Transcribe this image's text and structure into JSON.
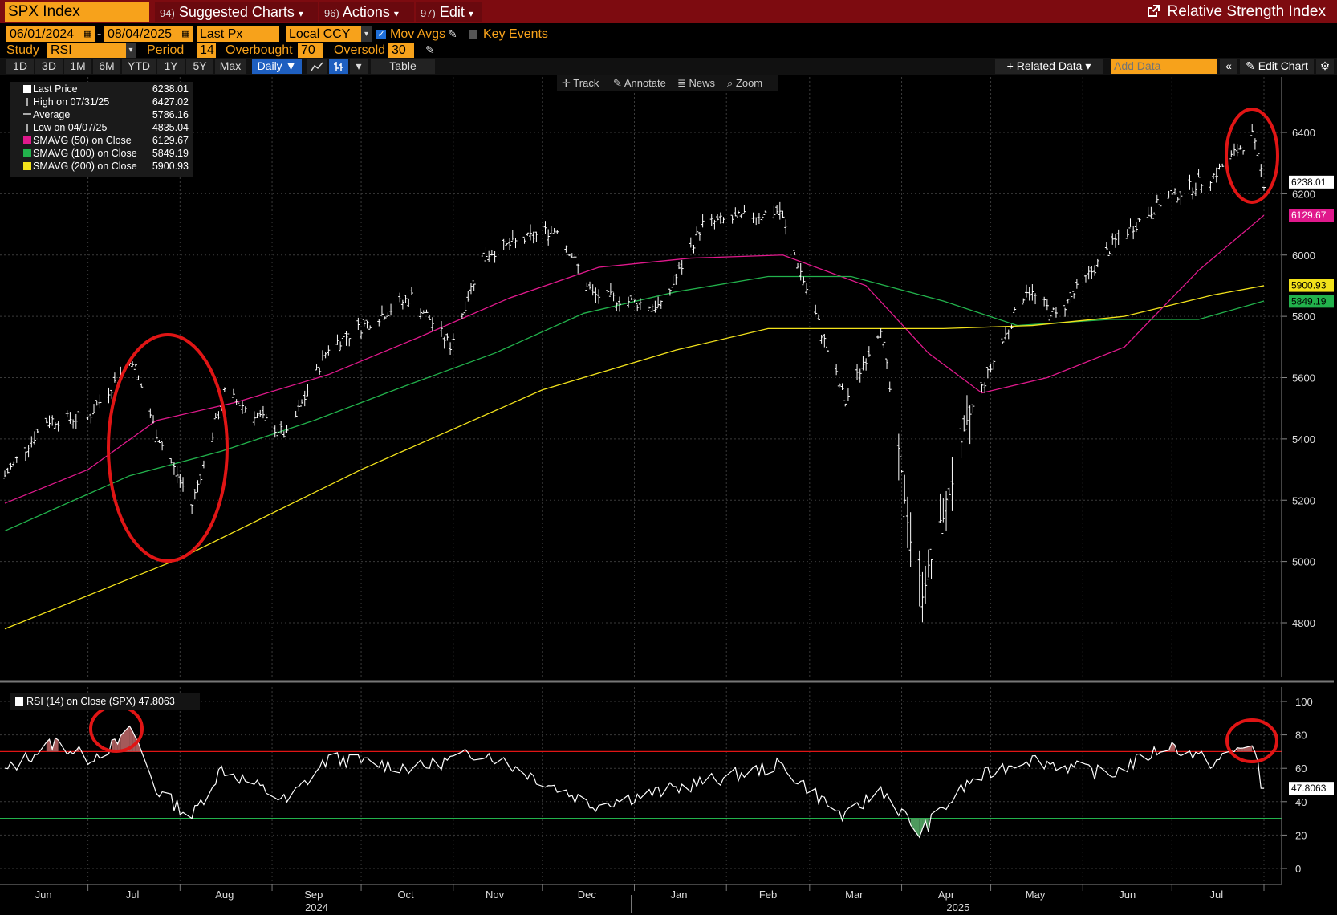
{
  "header": {
    "ticker": "SPX Index",
    "menus": [
      {
        "num": "94)",
        "label": "Suggested Charts",
        "caret": "▾"
      },
      {
        "num": "96)",
        "label": "Actions",
        "caret": "▾"
      },
      {
        "num": "97)",
        "label": "Edit",
        "caret": "▾"
      }
    ],
    "title": "Relative Strength Index"
  },
  "controls": {
    "start_date": "06/01/2024",
    "dash": "-",
    "end_date": "08/04/2025",
    "price_field": "Last Px",
    "currency": "Local CCY",
    "mov_avgs_label": "Mov Avgs",
    "key_events_label": "Key Events",
    "study_label": "Study",
    "study_value": "RSI",
    "period_label": "Period",
    "period_value": "14",
    "overbought_label": "Overbought",
    "overbought_value": "70",
    "oversold_label": "Oversold",
    "oversold_value": "30"
  },
  "toolbar": {
    "ranges": [
      "1D",
      "3D",
      "1M",
      "6M",
      "YTD",
      "1Y",
      "5Y",
      "Max"
    ],
    "frequency": "Daily ▼",
    "table_label": "Table",
    "related_data": "+ Related Data ▾",
    "add_data_placeholder": "Add Data",
    "collapse": "«",
    "edit_chart": "Edit Chart"
  },
  "chart_tools": [
    "Track",
    "Annotate",
    "News",
    "Zoom"
  ],
  "legend": [
    {
      "label": "Last Price",
      "value": "6238.01",
      "color": "#ffffff"
    },
    {
      "label": "High on 07/31/25",
      "value": "6427.02",
      "color": ""
    },
    {
      "label": "Average",
      "value": "5786.16",
      "color": ""
    },
    {
      "label": "Low on 04/07/25",
      "value": "4835.04",
      "color": ""
    },
    {
      "label": "SMAVG (50)  on Close",
      "value": "6129.67",
      "color": "#e0198c"
    },
    {
      "label": "SMAVG (100)  on Close",
      "value": "5849.19",
      "color": "#22b24c"
    },
    {
      "label": "SMAVG (200)  on Close",
      "value": "5900.93",
      "color": "#f2e21b"
    }
  ],
  "price_tags": [
    {
      "value": "6238.01",
      "color": "#ffffff",
      "text_color": "#000000",
      "y": 6238.01
    },
    {
      "value": "6129.67",
      "color": "#e0198c",
      "text_color": "#ffffff",
      "y": 6129.67
    },
    {
      "value": "5900.93",
      "color": "#f2e21b",
      "text_color": "#000000",
      "y": 5900.93
    },
    {
      "value": "5849.19",
      "color": "#22b24c",
      "text_color": "#000000",
      "y": 5849.19
    }
  ],
  "rsi_legend": {
    "label": "RSI (14)  on Close (SPX)",
    "value": "47.8063"
  },
  "rsi_tag": "47.8063",
  "months": [
    "Jun",
    "Jul",
    "Aug",
    "Sep",
    "Oct",
    "Nov",
    "Dec",
    "Jan",
    "Feb",
    "Mar",
    "Apr",
    "May",
    "Jun",
    "Jul"
  ],
  "years": [
    "2024",
    "2025"
  ],
  "chart_data": [
    {
      "type": "line",
      "title": "SPX Index",
      "ylim": [
        4650,
        6500
      ],
      "yticks": [
        4800,
        5000,
        5200,
        5400,
        5600,
        5800,
        6000,
        6200,
        6400
      ],
      "x_range": [
        "2024-06-03",
        "2025-08-01"
      ],
      "series": [
        {
          "name": "Last Price",
          "color": "#ffffff",
          "x": [
            "2024-06-03",
            "2024-06-17",
            "2024-07-01",
            "2024-07-16",
            "2024-07-24",
            "2024-08-05",
            "2024-08-16",
            "2024-09-06",
            "2024-09-20",
            "2024-10-18",
            "2024-10-31",
            "2024-11-11",
            "2024-12-06",
            "2024-12-18",
            "2025-01-10",
            "2025-01-24",
            "2025-02-19",
            "2025-03-13",
            "2025-03-25",
            "2025-04-04",
            "2025-04-08",
            "2025-04-24",
            "2025-05-13",
            "2025-05-23",
            "2025-06-12",
            "2025-06-27",
            "2025-07-15",
            "2025-07-28",
            "2025-08-01"
          ],
          "y": [
            5280,
            5460,
            5470,
            5660,
            5420,
            5186,
            5550,
            5410,
            5700,
            5865,
            5705,
            6000,
            6090,
            5870,
            5830,
            6100,
            6144,
            5520,
            5770,
            5070,
            4900,
            5480,
            5890,
            5800,
            6045,
            6170,
            6260,
            6390,
            6238
          ]
        },
        {
          "name": "SMAVG (50)",
          "color": "#e0198c",
          "x": [
            "2024-06-03",
            "2024-07-01",
            "2024-07-24",
            "2024-08-20",
            "2024-09-20",
            "2024-10-20",
            "2024-11-20",
            "2024-12-20",
            "2025-01-20",
            "2025-02-20",
            "2025-03-20",
            "2025-04-10",
            "2025-04-28",
            "2025-05-20",
            "2025-06-15",
            "2025-07-10",
            "2025-08-01"
          ],
          "y": [
            5190,
            5300,
            5460,
            5520,
            5610,
            5730,
            5860,
            5960,
            5990,
            6000,
            5900,
            5680,
            5550,
            5600,
            5700,
            5950,
            6130
          ]
        },
        {
          "name": "SMAVG (100)",
          "color": "#22b24c",
          "x": [
            "2024-06-03",
            "2024-07-15",
            "2024-08-15",
            "2024-09-15",
            "2024-10-15",
            "2024-11-15",
            "2024-12-15",
            "2025-01-15",
            "2025-02-15",
            "2025-03-15",
            "2025-04-15",
            "2025-05-10",
            "2025-06-10",
            "2025-07-10",
            "2025-08-01"
          ],
          "y": [
            5100,
            5280,
            5360,
            5460,
            5570,
            5680,
            5810,
            5880,
            5930,
            5930,
            5850,
            5770,
            5790,
            5790,
            5850
          ]
        },
        {
          "name": "SMAVG (200)",
          "color": "#f2e21b",
          "x": [
            "2024-06-03",
            "2024-08-01",
            "2024-10-01",
            "2024-12-01",
            "2025-01-15",
            "2025-02-15",
            "2025-03-15",
            "2025-04-15",
            "2025-05-15",
            "2025-06-15",
            "2025-07-15",
            "2025-08-01"
          ],
          "y": [
            4780,
            5010,
            5300,
            5560,
            5690,
            5760,
            5760,
            5760,
            5770,
            5800,
            5870,
            5900
          ]
        }
      ]
    },
    {
      "type": "line",
      "title": "RSI (14) on Close (SPX)",
      "ylim": [
        -5,
        105
      ],
      "yticks": [
        0,
        20,
        40,
        60,
        80,
        100
      ],
      "overbought": 70,
      "oversold": 30,
      "series": [
        {
          "name": "RSI (14)",
          "color": "#ffffff",
          "x": [
            "2024-06-03",
            "2024-06-12",
            "2024-06-20",
            "2024-07-01",
            "2024-07-10",
            "2024-07-16",
            "2024-07-24",
            "2024-08-05",
            "2024-08-15",
            "2024-09-06",
            "2024-09-20",
            "2024-10-20",
            "2024-11-11",
            "2024-12-18",
            "2025-01-10",
            "2025-02-19",
            "2025-03-13",
            "2025-03-25",
            "2025-04-07",
            "2025-04-24",
            "2025-05-13",
            "2025-06-10",
            "2025-06-30",
            "2025-07-15",
            "2025-07-28",
            "2025-08-01"
          ],
          "y": [
            58,
            68,
            76,
            66,
            74,
            83,
            47,
            31,
            60,
            40,
            66,
            60,
            70,
            38,
            46,
            62,
            30,
            48,
            21,
            52,
            66,
            56,
            74,
            63,
            76,
            48
          ]
        }
      ]
    }
  ]
}
